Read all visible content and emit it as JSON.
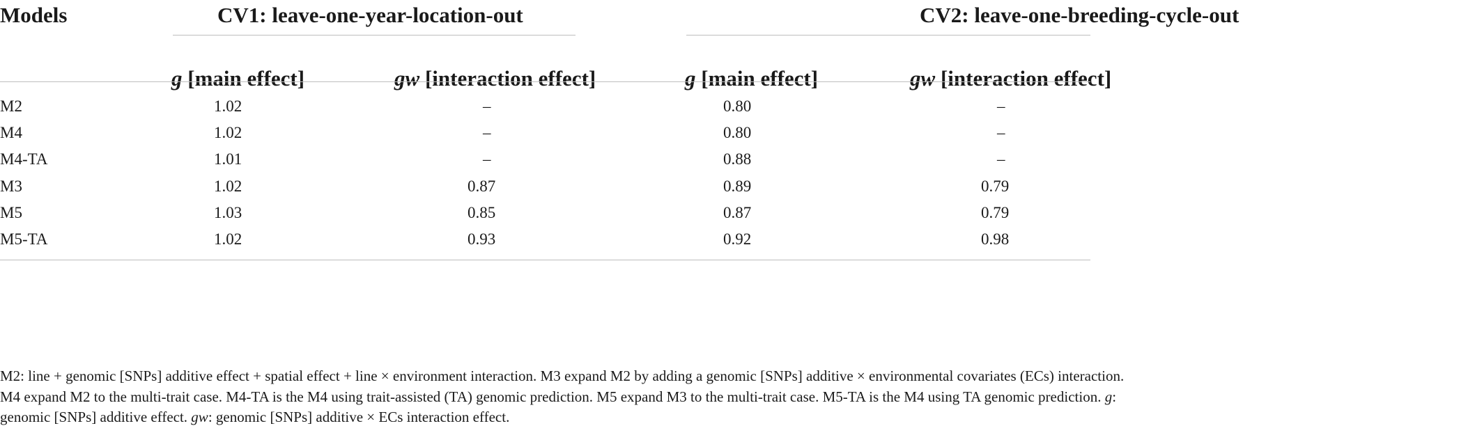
{
  "table": {
    "header": {
      "models": "Models",
      "cv1": "CV1: leave-one-year-location-out",
      "cv2": "CV2: leave-one-breeding-cycle-out"
    },
    "subheaders": {
      "g_symbol": "g",
      "g_text": " [main effect]",
      "gw_symbol": "gw",
      "gw_text": " [interaction effect]"
    },
    "rows": [
      {
        "model": "M2",
        "cv1_g": "1.02",
        "cv1_gw": "–",
        "cv2_g": "0.80",
        "cv2_gw": "–"
      },
      {
        "model": "M4",
        "cv1_g": "1.02",
        "cv1_gw": "–",
        "cv2_g": "0.80",
        "cv2_gw": "–"
      },
      {
        "model": "M4-TA",
        "cv1_g": "1.01",
        "cv1_gw": "–",
        "cv2_g": "0.88",
        "cv2_gw": "–"
      },
      {
        "model": "M3",
        "cv1_g": "1.02",
        "cv1_gw": "0.87",
        "cv2_g": "0.89",
        "cv2_gw": "0.79"
      },
      {
        "model": "M5",
        "cv1_g": "1.03",
        "cv1_gw": "0.85",
        "cv2_g": "0.87",
        "cv2_gw": "0.79"
      },
      {
        "model": "M5-TA",
        "cv1_g": "1.02",
        "cv1_gw": "0.93",
        "cv2_g": "0.92",
        "cv2_gw": "0.98"
      }
    ]
  },
  "footnote": {
    "line1": "M2: line + genomic [SNPs] additive effect + spatial effect + line × environment interaction. M3 expand M2 by adding a genomic [SNPs] additive × environmental covariates (ECs) interaction.",
    "line2": "M4 expand M2 to the multi-trait case. M4-TA is the M4 using trait-assisted (TA) genomic prediction. M5 expand M3 to the multi-trait case. M5-TA is the M4 using TA genomic prediction. ",
    "line2_g": "g",
    "line2_end": ":",
    "line3_start": "genomic [SNPs] additive effect. ",
    "line3_gw": "gw",
    "line3_end": ": genomic [SNPs] additive × ECs interaction effect."
  }
}
